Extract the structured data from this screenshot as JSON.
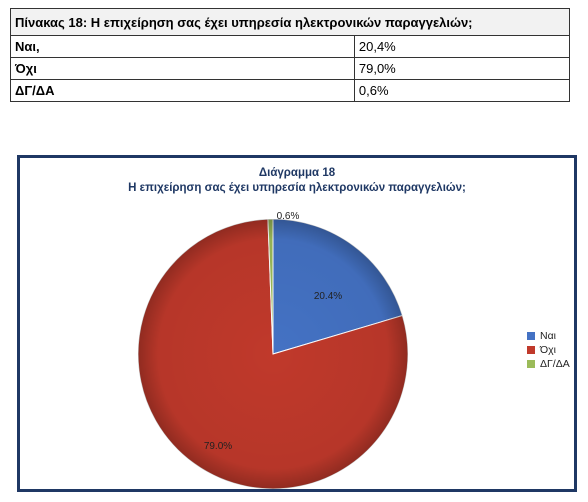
{
  "table": {
    "title": "Πίνακας 18: Η επιχείρηση σας έχει υπηρεσία ηλεκτρονικών παραγγελιών;",
    "rows": [
      {
        "label": "Ναι,",
        "value": "20,4%"
      },
      {
        "label": "Όχι",
        "value": "79,0%"
      },
      {
        "label": "ΔΓ/ΔΑ",
        "value": "0,6%"
      }
    ]
  },
  "chart_data": {
    "type": "pie",
    "title": "Διάγραμμα 18",
    "subtitle": "Η επιχείρηση σας έχει υπηρεσία ηλεκτρονικών παραγγελιών;",
    "categories": [
      "Ναι",
      "Όχι",
      "ΔΓ/ΔΑ"
    ],
    "values": [
      20.4,
      79.0,
      0.6
    ],
    "data_labels": [
      "20.4%",
      "79.0%",
      "0.6%"
    ],
    "colors": [
      "#4472c4",
      "#c0392b",
      "#9bbb59"
    ],
    "legend_position": "right"
  }
}
